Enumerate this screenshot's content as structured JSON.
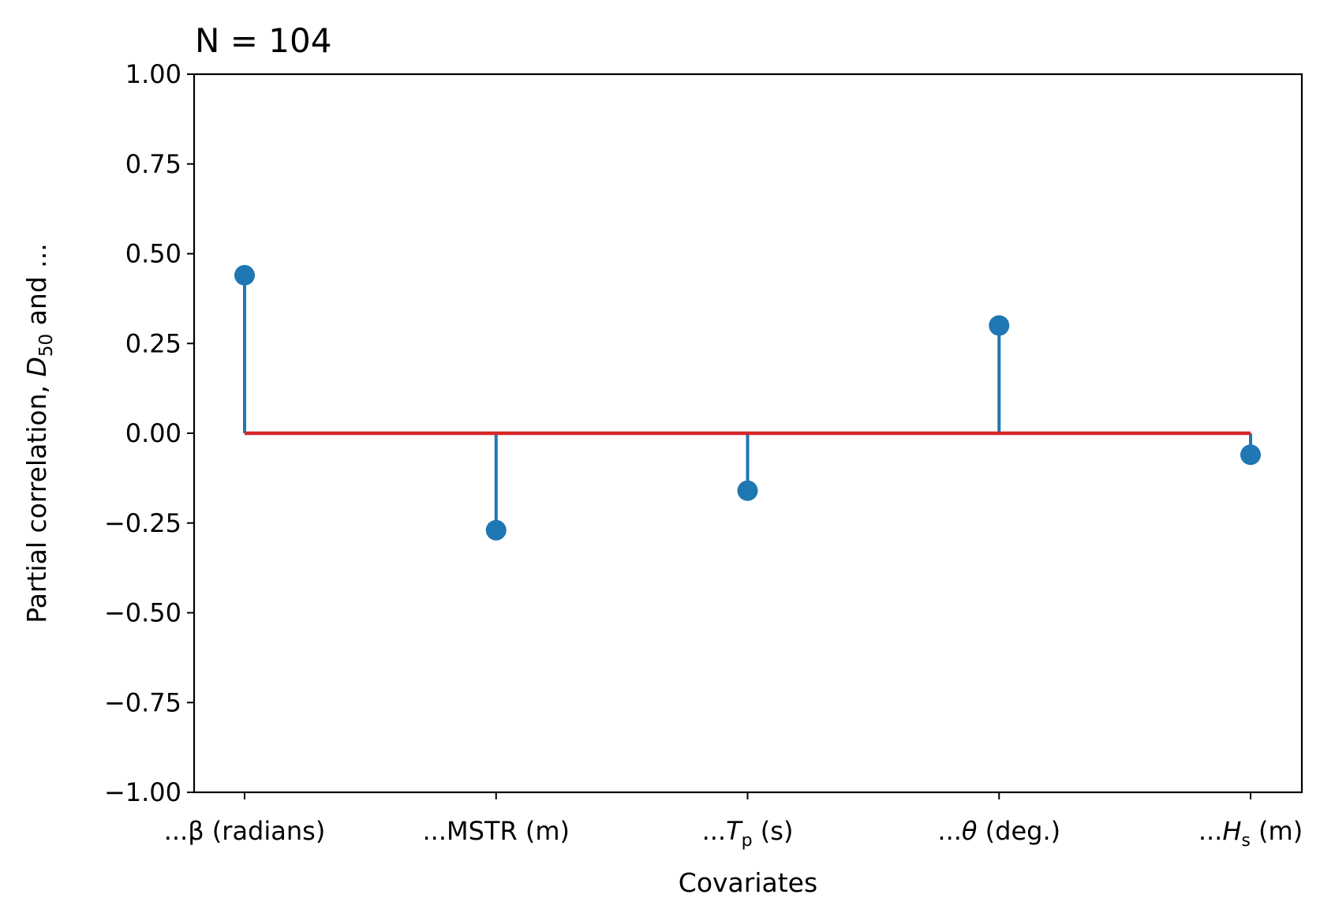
{
  "chart_data": {
    "type": "stem",
    "title": "N = 104",
    "xlabel": "Covariates",
    "ylabel": {
      "prefix": "Partial correlation, ",
      "var": "D",
      "sub": "50",
      "suffix": " and ..."
    },
    "categories": [
      {
        "pre": "...β (radians)",
        "var": "",
        "sub": "",
        "post": ""
      },
      {
        "pre": "...MSTR (m)",
        "var": "",
        "sub": "",
        "post": ""
      },
      {
        "pre": "...",
        "var": "T",
        "sub": "p",
        "post": " (s)"
      },
      {
        "pre": "...",
        "var": "θ",
        "sub": "",
        "post": " (deg.)"
      },
      {
        "pre": "...",
        "var": "H",
        "sub": "s",
        "post": " (m)"
      }
    ],
    "values": [
      0.44,
      -0.27,
      -0.16,
      0.3,
      -0.06
    ],
    "ylim": [
      -1.0,
      1.0
    ],
    "yticks": [
      "−1.00",
      "−0.75",
      "−0.50",
      "−0.25",
      "0.00",
      "0.25",
      "0.50",
      "0.75",
      "1.00"
    ],
    "ytick_values": [
      -1.0,
      -0.75,
      -0.5,
      -0.25,
      0.0,
      0.25,
      0.5,
      0.75,
      1.0
    ],
    "baseline": 0.0,
    "grid": false,
    "colors": {
      "stem": "#1f77b4",
      "baseline": "#d62728"
    }
  }
}
